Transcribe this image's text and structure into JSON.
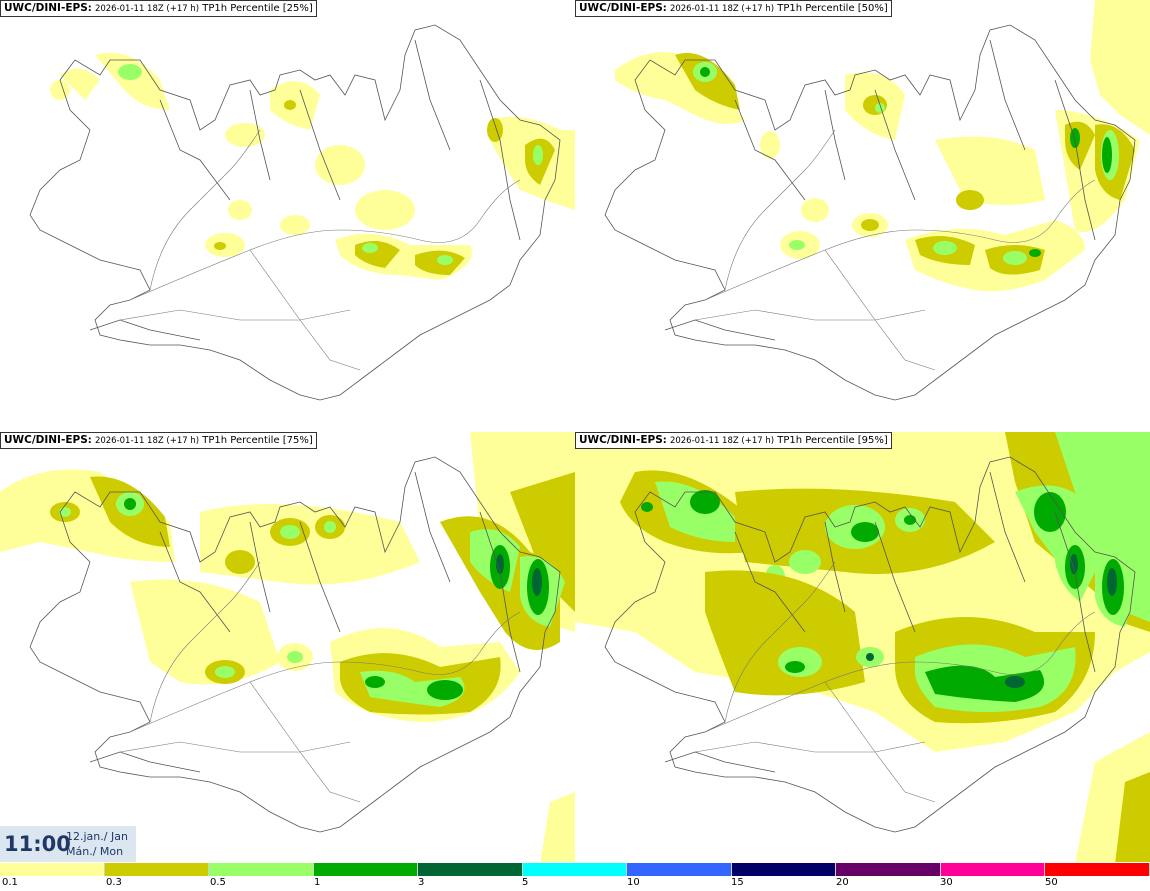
{
  "panels": [
    {
      "model": "UWC/DINI-EPS",
      "run": "2026-01-11 18Z (+17 h)",
      "param": "TP1h Percentile [25%]"
    },
    {
      "model": "UWC/DINI-EPS",
      "run": "2026-01-11 18Z (+17 h)",
      "param": "TP1h Percentile [50%]"
    },
    {
      "model": "UWC/DINI-EPS",
      "run": "2026-01-11 18Z (+17 h)",
      "param": "TP1h Percentile [75%]"
    },
    {
      "model": "UWC/DINI-EPS",
      "run": "2026-01-11 18Z (+17 h)",
      "param": "TP1h Percentile [95%]"
    }
  ],
  "timestamp": {
    "time": "11:00",
    "date": "12.jan./ Jan",
    "weekday": "Mán./ Mon"
  },
  "legend": {
    "colors": [
      "#ffff99",
      "#cccc00",
      "#99ff66",
      "#00aa00",
      "#006633",
      "#00ffff",
      "#3366ff",
      "#000066",
      "#660066",
      "#ff0099",
      "#ff0000"
    ],
    "ticks": [
      "0.1",
      "0.3",
      "0.5",
      "1",
      "3",
      "5",
      "10",
      "15",
      "20",
      "30",
      "50"
    ]
  },
  "colors": {
    "yellow": "#ffff99",
    "olive": "#cccc00",
    "lightgreen": "#99ff66",
    "green": "#00aa00",
    "darkgreen": "#006633"
  }
}
